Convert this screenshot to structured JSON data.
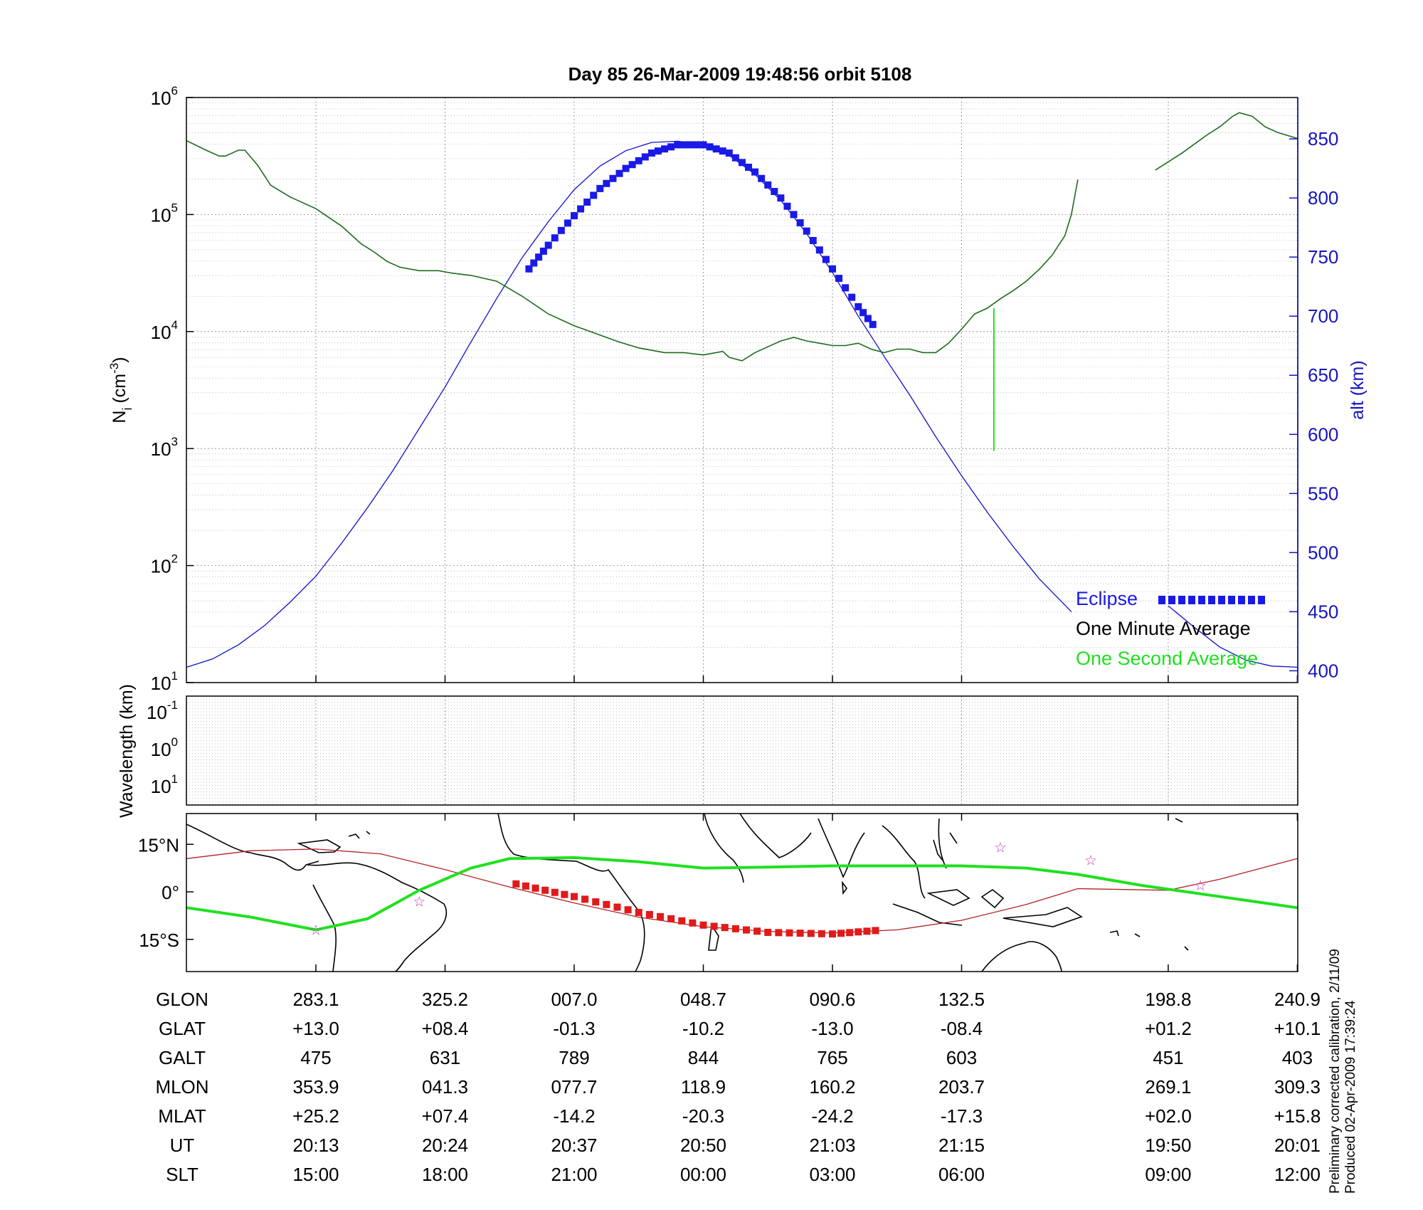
{
  "chart_data": [
    {
      "id": "density-panel",
      "type": "line",
      "title": "Day 85  26-Mar-2009 19:48:56   orbit 5108",
      "ylabel": "N",
      "ylabel_sub": "i",
      "ylabel_unit": "(cm",
      "ylabel_exp": "-3",
      "ylabel_close": ")",
      "yscale": "log",
      "ylim_exp": [
        1,
        6
      ],
      "y_ticks": [
        {
          "base": "10",
          "exp": "1"
        },
        {
          "base": "10",
          "exp": "2"
        },
        {
          "base": "10",
          "exp": "3"
        },
        {
          "base": "10",
          "exp": "4"
        },
        {
          "base": "10",
          "exp": "5"
        },
        {
          "base": "10",
          "exp": "6"
        }
      ],
      "y2label": "alt (km)",
      "y2lim": [
        390,
        885
      ],
      "y2_ticks": [
        "400",
        "450",
        "500",
        "550",
        "600",
        "650",
        "700",
        "750",
        "800",
        "850"
      ],
      "x_major_positions": [
        0,
        1,
        2,
        3,
        4,
        5,
        6.6,
        7.6
      ],
      "xlim": [
        -1,
        7.6
      ],
      "legend": {
        "placement": "bottom-right",
        "eclipse": "Eclipse",
        "minute": "One Minute Average",
        "second": "One Second Average"
      },
      "series": [
        {
          "name": "One Minute Average",
          "log10_values_segment1": [
            [
              -1.0,
              5.63
            ],
            [
              -0.85,
              5.55
            ],
            [
              -0.75,
              5.5
            ],
            [
              -0.7,
              5.5
            ],
            [
              -0.6,
              5.55
            ],
            [
              -0.55,
              5.55
            ],
            [
              -0.45,
              5.42
            ],
            [
              -0.35,
              5.25
            ],
            [
              -0.2,
              5.15
            ],
            [
              0.0,
              5.05
            ],
            [
              0.2,
              4.9
            ],
            [
              0.35,
              4.75
            ],
            [
              0.45,
              4.68
            ],
            [
              0.55,
              4.6
            ],
            [
              0.65,
              4.55
            ],
            [
              0.8,
              4.52
            ],
            [
              0.95,
              4.52
            ],
            [
              1.05,
              4.5
            ],
            [
              1.2,
              4.48
            ],
            [
              1.4,
              4.43
            ],
            [
              1.6,
              4.3
            ],
            [
              1.8,
              4.15
            ],
            [
              2.0,
              4.05
            ],
            [
              2.2,
              3.97
            ],
            [
              2.35,
              3.91
            ],
            [
              2.5,
              3.86
            ],
            [
              2.7,
              3.82
            ],
            [
              2.85,
              3.82
            ],
            [
              3.0,
              3.8
            ],
            [
              3.15,
              3.83
            ],
            [
              3.2,
              3.78
            ],
            [
              3.3,
              3.75
            ],
            [
              3.4,
              3.82
            ],
            [
              3.5,
              3.87
            ],
            [
              3.6,
              3.92
            ],
            [
              3.7,
              3.95
            ],
            [
              3.8,
              3.92
            ],
            [
              3.9,
              3.9
            ],
            [
              4.0,
              3.88
            ],
            [
              4.1,
              3.88
            ],
            [
              4.2,
              3.9
            ],
            [
              4.3,
              3.85
            ],
            [
              4.4,
              3.82
            ],
            [
              4.5,
              3.85
            ],
            [
              4.6,
              3.85
            ],
            [
              4.7,
              3.82
            ],
            [
              4.8,
              3.82
            ],
            [
              4.9,
              3.9
            ],
            [
              5.0,
              4.02
            ],
            [
              5.1,
              4.15
            ],
            [
              5.2,
              4.2
            ],
            [
              5.3,
              4.28
            ],
            [
              5.4,
              4.35
            ],
            [
              5.5,
              4.43
            ],
            [
              5.6,
              4.53
            ],
            [
              5.7,
              4.65
            ],
            [
              5.8,
              4.82
            ],
            [
              5.85,
              5.0
            ],
            [
              5.9,
              5.3
            ]
          ],
          "log10_values_segment2": [
            [
              6.5,
              5.38
            ],
            [
              6.6,
              5.45
            ],
            [
              6.7,
              5.52
            ],
            [
              6.8,
              5.6
            ],
            [
              6.9,
              5.68
            ],
            [
              7.0,
              5.75
            ],
            [
              7.1,
              5.84
            ],
            [
              7.15,
              5.87
            ],
            [
              7.25,
              5.84
            ],
            [
              7.35,
              5.75
            ],
            [
              7.45,
              5.7
            ],
            [
              7.6,
              5.65
            ]
          ]
        },
        {
          "name": "One Second Average",
          "spike": {
            "x": 5.25,
            "log10_top": 4.2,
            "log10_bottom": 2.98
          }
        },
        {
          "name": "Altitude (km)",
          "segment1": [
            [
              -1.0,
              403
            ],
            [
              -0.8,
              410
            ],
            [
              -0.6,
              422
            ],
            [
              -0.4,
              438
            ],
            [
              -0.2,
              458
            ],
            [
              0.0,
              480
            ],
            [
              0.2,
              508
            ],
            [
              0.4,
              538
            ],
            [
              0.6,
              570
            ],
            [
              0.8,
              605
            ],
            [
              1.0,
              640
            ],
            [
              1.2,
              678
            ],
            [
              1.4,
              715
            ],
            [
              1.6,
              750
            ],
            [
              1.8,
              780
            ],
            [
              2.0,
              807
            ],
            [
              2.2,
              827
            ],
            [
              2.4,
              840
            ],
            [
              2.6,
              847
            ],
            [
              2.8,
              848
            ],
            [
              3.0,
              845
            ],
            [
              3.2,
              836
            ],
            [
              3.4,
              820
            ],
            [
              3.6,
              798
            ],
            [
              3.8,
              770
            ],
            [
              4.0,
              737
            ],
            [
              4.2,
              700
            ],
            [
              4.4,
              666
            ],
            [
              4.6,
              633
            ],
            [
              4.8,
              598
            ],
            [
              5.0,
              565
            ],
            [
              5.2,
              534
            ],
            [
              5.4,
              505
            ],
            [
              5.6,
              478
            ],
            [
              5.85,
              450
            ]
          ],
          "segment2": [
            [
              6.6,
              455
            ],
            [
              6.8,
              437
            ],
            [
              7.0,
              420
            ],
            [
              7.2,
              409
            ],
            [
              7.4,
              404
            ],
            [
              7.6,
              403
            ]
          ]
        },
        {
          "name": "Eclipse",
          "alt_points": [
            [
              1.65,
              740
            ],
            [
              1.8,
              760
            ],
            [
              2.0,
              785
            ],
            [
              2.2,
              808
            ],
            [
              2.4,
              825
            ],
            [
              2.6,
              838
            ],
            [
              2.8,
              845
            ],
            [
              3.0,
              845
            ],
            [
              3.2,
              838
            ],
            [
              3.4,
              822
            ],
            [
              3.6,
              800
            ],
            [
              3.8,
              772
            ],
            [
              4.0,
              740
            ],
            [
              4.2,
              708
            ],
            [
              4.35,
              688
            ]
          ]
        }
      ]
    },
    {
      "id": "wavelength-panel",
      "type": "line",
      "ylabel": "Wavelength (km)",
      "y_ticks": [
        {
          "base": "10",
          "exp": "-1"
        },
        {
          "base": "10",
          "exp": "0"
        },
        {
          "base": "10",
          "exp": "1"
        }
      ],
      "series": []
    },
    {
      "id": "map-panel",
      "type": "line",
      "y_ticks": [
        "15°N",
        "0°",
        "15°S"
      ],
      "series": [
        {
          "name": "Magnetic equator",
          "points": [
            [
              -1.0,
              10.5
            ],
            [
              -0.5,
              13
            ],
            [
              0.0,
              13.5
            ],
            [
              0.5,
              12
            ],
            [
              1.0,
              7
            ],
            [
              1.5,
              1.5
            ],
            [
              2.0,
              -3.5
            ],
            [
              2.5,
              -8
            ],
            [
              3.0,
              -11
            ],
            [
              3.5,
              -12.5
            ],
            [
              4.0,
              -13
            ],
            [
              4.5,
              -12
            ],
            [
              5.0,
              -9
            ],
            [
              5.5,
              -4
            ],
            [
              5.9,
              1
            ],
            [
              6.6,
              0.5
            ],
            [
              7.0,
              4
            ],
            [
              7.6,
              10.5
            ]
          ]
        },
        {
          "name": "Satellite ground track",
          "points": [
            [
              -1.0,
              -5
            ],
            [
              -0.5,
              -8
            ],
            [
              0.0,
              -12
            ],
            [
              0.4,
              -8.5
            ],
            [
              0.8,
              0.5
            ],
            [
              1.2,
              7.5
            ],
            [
              1.5,
              10.5
            ],
            [
              2.0,
              10.8
            ],
            [
              2.5,
              9.5
            ],
            [
              3.0,
              7.5
            ],
            [
              3.5,
              7.8
            ],
            [
              4.0,
              8.2
            ],
            [
              4.5,
              8.2
            ],
            [
              5.0,
              8.2
            ],
            [
              5.5,
              7.5
            ],
            [
              5.9,
              5.5
            ],
            [
              6.4,
              2
            ],
            [
              7.0,
              -1.5
            ],
            [
              7.6,
              -5
            ]
          ]
        },
        {
          "name": "Eclipse track",
          "points": [
            [
              1.55,
              2.5
            ],
            [
              2.0,
              -1.5
            ],
            [
              2.5,
              -6.5
            ],
            [
              3.0,
              -10.5
            ],
            [
              3.5,
              -12.8
            ],
            [
              4.0,
              -13.3
            ],
            [
              4.4,
              -12
            ]
          ]
        },
        {
          "name": "Stars",
          "points": [
            [
              0.0,
              -12
            ],
            [
              0.8,
              -3
            ],
            [
              5.3,
              14
            ],
            [
              6.0,
              10
            ],
            [
              6.85,
              2
            ]
          ]
        }
      ]
    }
  ],
  "table": {
    "rows": [
      {
        "label": "GLON",
        "values": [
          "283.1",
          "325.2",
          "007.0",
          "048.7",
          "090.6",
          "132.5",
          "198.8",
          "240.9"
        ]
      },
      {
        "label": "GLAT",
        "values": [
          "+13.0",
          "+08.4",
          "-01.3",
          "-10.2",
          "-13.0",
          "-08.4",
          "+01.2",
          "+10.1"
        ]
      },
      {
        "label": "GALT",
        "values": [
          "475",
          "631",
          "789",
          "844",
          "765",
          "603",
          "451",
          "403"
        ]
      },
      {
        "label": "MLON",
        "values": [
          "353.9",
          "041.3",
          "077.7",
          "118.9",
          "160.2",
          "203.7",
          "269.1",
          "309.3"
        ]
      },
      {
        "label": "MLAT",
        "values": [
          "+25.2",
          "+07.4",
          "-14.2",
          "-20.3",
          "-24.2",
          "-17.3",
          "+02.0",
          "+15.8"
        ]
      },
      {
        "label": "UT",
        "values": [
          "20:13",
          "20:24",
          "20:37",
          "20:50",
          "21:03",
          "21:15",
          "19:50",
          "20:01"
        ]
      },
      {
        "label": "SLT",
        "values": [
          "15:00",
          "18:00",
          "21:00",
          "00:00",
          "03:00",
          "06:00",
          "09:00",
          "12:00"
        ]
      }
    ]
  },
  "footnote": {
    "line1": "Preliminary corrected calibration, 2/11/09",
    "line2": "Produced 02-Apr-2009 17:39:24"
  },
  "colors": {
    "minute_line": "#1e6b1e",
    "second_line": "#20e020",
    "altitude": "#1010c8",
    "eclipse": "#1a1ae6",
    "eclipse_map": "#e01a1a",
    "track": "#20e020",
    "mag_equator": "#b22222",
    "stars": "#c040c0",
    "axis_blue": "#1515c0"
  }
}
